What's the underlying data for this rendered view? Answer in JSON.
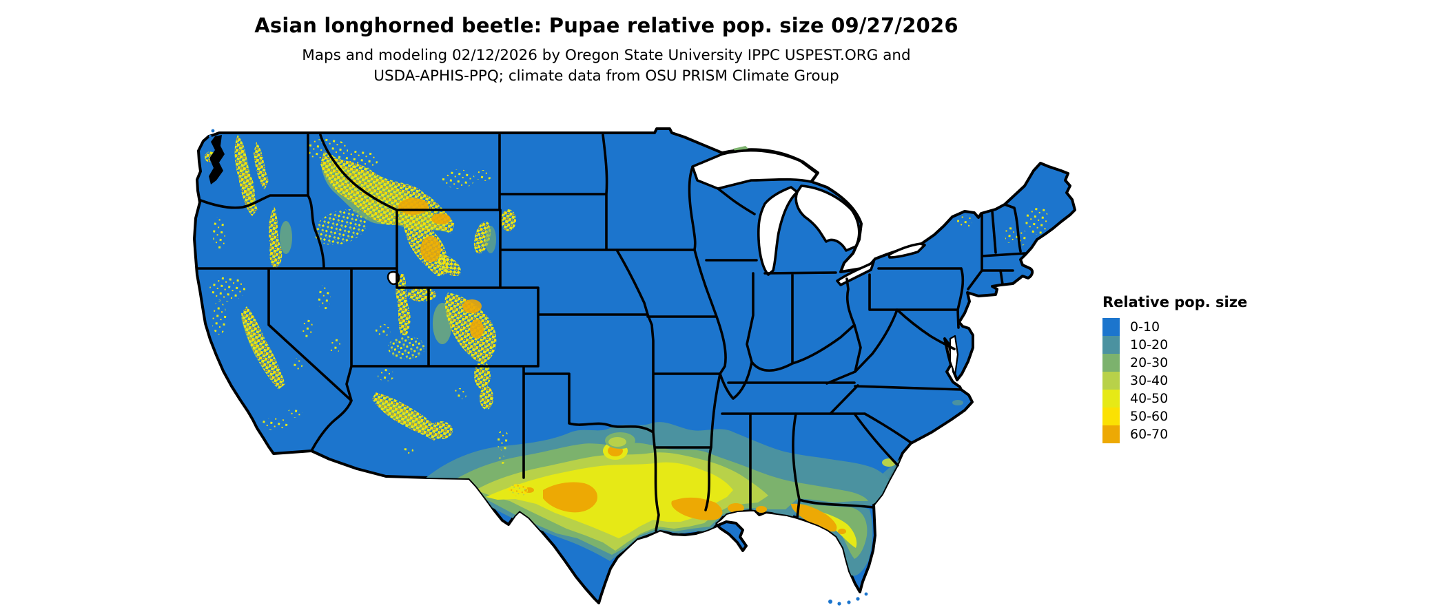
{
  "header": {
    "title": "Asian longhorned beetle: Pupae relative pop. size 09/27/2026",
    "subtitle_line1": "Maps and modeling 02/12/2026 by Oregon State University IPPC USPEST.ORG and",
    "subtitle_line2": "USDA-APHIS-PPQ; climate data from OSU PRISM Climate Group"
  },
  "legend": {
    "title": "Relative pop. size",
    "items": [
      {
        "label": "0-10",
        "color": "#1c75cd"
      },
      {
        "label": "10-20",
        "color": "#4b92a0"
      },
      {
        "label": "20-30",
        "color": "#7cb26d"
      },
      {
        "label": "30-40",
        "color": "#b8d149"
      },
      {
        "label": "40-50",
        "color": "#e6e916"
      },
      {
        "label": "50-60",
        "color": "#fbe103"
      },
      {
        "label": "60-70",
        "color": "#eda904"
      }
    ]
  },
  "map": {
    "region": "Contiguous United States",
    "base_color": "#1c75cd",
    "border_color": "#000000",
    "water_color": "#ffffff",
    "background": "#ffffff"
  }
}
